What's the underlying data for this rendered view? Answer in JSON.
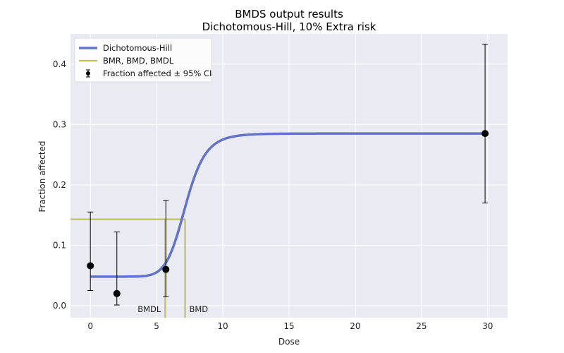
{
  "chart_data": {
    "type": "line",
    "title": "BMDS output results",
    "subtitle": "Dichotomous-Hill, 10% Extra risk",
    "xlabel": "Dose",
    "ylabel": "Fraction affected",
    "xlim": [
      -1.5,
      31.5
    ],
    "ylim": [
      -0.02,
      0.45
    ],
    "xticks": [
      0,
      5,
      10,
      15,
      20,
      25,
      30
    ],
    "yticks": [
      0.0,
      0.1,
      0.2,
      0.3,
      0.4
    ],
    "xtick_labels": [
      "0",
      "5",
      "10",
      "15",
      "20",
      "25",
      "30"
    ],
    "ytick_labels": [
      "0.0",
      "0.1",
      "0.2",
      "0.3",
      "0.4"
    ],
    "grid": true,
    "legend_position": "top-left",
    "colors": {
      "plot_background": "#eaeaf2",
      "grid": "#ffffff",
      "model": "#6474c4",
      "bmr": "#bfbf60",
      "points": "#000000"
    },
    "legend": [
      {
        "label": "Dichotomous-Hill",
        "kind": "line",
        "color": "#6474c4"
      },
      {
        "label": "BMR, BMD, BMDL",
        "kind": "line",
        "color": "#bfbf60"
      },
      {
        "label": "Fraction affected ± 95% CI",
        "kind": "errorbar",
        "color": "#000000"
      }
    ],
    "model_curve": {
      "name": "Dichotomous-Hill",
      "background": 0.048,
      "plateau": 0.285,
      "ec50": 7.2,
      "slope": 9.5,
      "x_start": 0,
      "x_end": 29.8
    },
    "observed": [
      {
        "x": 0,
        "y": 0.066,
        "lower": 0.025,
        "upper": 0.155
      },
      {
        "x": 2,
        "y": 0.02,
        "lower": 0.001,
        "upper": 0.122
      },
      {
        "x": 5.7,
        "y": 0.06,
        "lower": 0.015,
        "upper": 0.174
      },
      {
        "x": 29.8,
        "y": 0.285,
        "lower": 0.17,
        "upper": 0.433
      }
    ],
    "bmr": {
      "y": 0.143,
      "bmd": 7.15,
      "bmdl": 5.65
    },
    "annotations": {
      "bmdl": "BMDL",
      "bmd": "BMD"
    }
  }
}
